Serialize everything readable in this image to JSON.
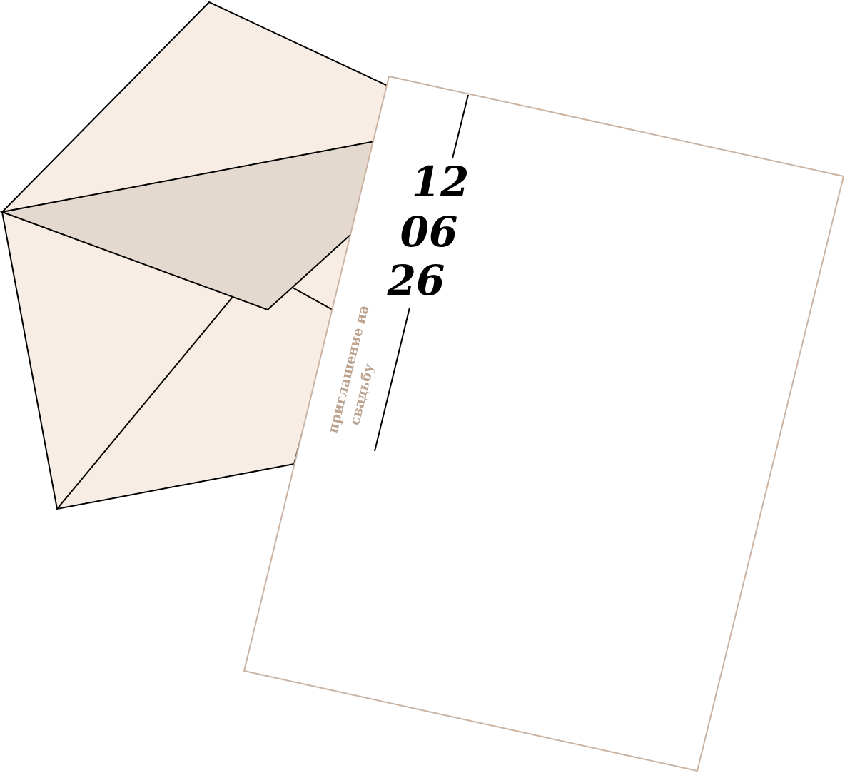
{
  "invitation": {
    "date": {
      "day": "12",
      "month": "06",
      "year": "26"
    },
    "caption": {
      "line1": "приглашение на",
      "line2": "свадьбу"
    }
  },
  "colors": {
    "envelope_fill": "#f8ede4",
    "envelope_flap_fill": "#e3d9cf",
    "envelope_stroke": "#000000",
    "card_fill": "#ffffff",
    "card_border": "#cbb3a2",
    "date_text": "#000000",
    "caption_text": "#bba38f",
    "rule_line": "#000000"
  }
}
